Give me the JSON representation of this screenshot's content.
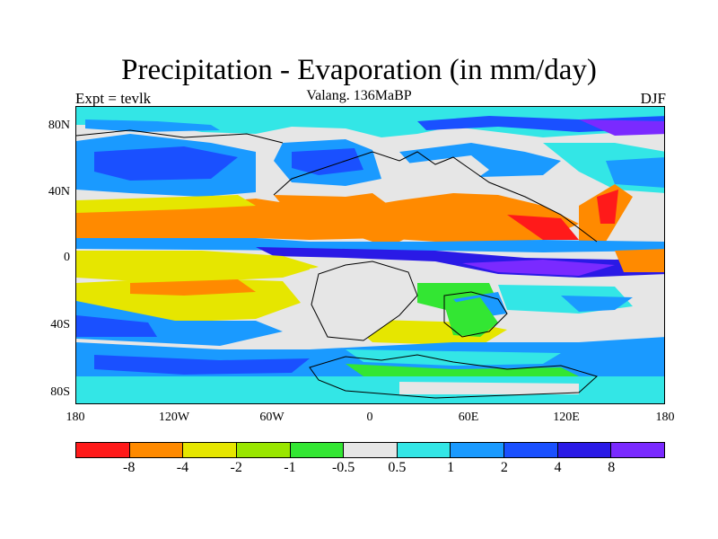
{
  "title": "Precipitation - Evaporation (in mm/day)",
  "subtitle_left": "Expt = tevlk",
  "subtitle_center": "Valang. 136MaBP",
  "subtitle_right": "DJF",
  "y_ticks": [
    "80N",
    "40N",
    "0",
    "40S",
    "80S"
  ],
  "x_ticks": [
    "180",
    "120W",
    "60W",
    "0",
    "60E",
    "120E",
    "180"
  ],
  "legend": {
    "colors": [
      "#ff1a1a",
      "#ff8a00",
      "#e6e600",
      "#99e600",
      "#33e633",
      "#e6e6e6",
      "#33e6e6",
      "#1a9aff",
      "#1a50ff",
      "#2a1ae6",
      "#7a2aff"
    ],
    "labels": [
      "-8",
      "-4",
      "-2",
      "-1",
      "-0.5",
      "0.5",
      "1",
      "2",
      "4",
      "8"
    ]
  }
}
